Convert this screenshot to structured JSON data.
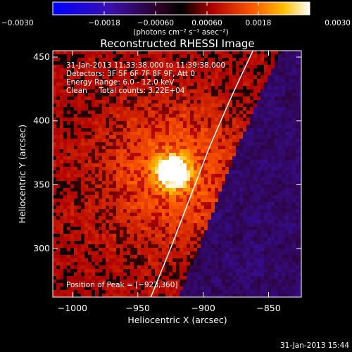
{
  "chart_data": {
    "type": "heatmap",
    "title": "Reconstructed RHESSI Image",
    "xlabel": "Heliocentric X (arcsec)",
    "ylabel": "Heliocentric Y (arcsec)",
    "xlim": [
      -1015,
      -825
    ],
    "ylim": [
      262,
      455
    ],
    "x_ticks": [
      -1000,
      -950,
      -900,
      -850
    ],
    "y_ticks": [
      300,
      350,
      400,
      450
    ],
    "x_tick_labels": [
      "−1000",
      "−950",
      "−900",
      "−850"
    ],
    "y_tick_labels": [
      "300",
      "350",
      "400",
      "450"
    ],
    "colorbar": {
      "range": [
        -0.003,
        0.003
      ],
      "ticks": [
        -0.003,
        -0.0018,
        -0.0006,
        0.0006,
        0.0018,
        0.003
      ],
      "tick_labels": [
        "−0.0030",
        "−0.0018",
        "−0.00060",
        "0.00060",
        "0.0018",
        "0.0030"
      ],
      "units": "(photons cm⁻² s⁻¹ asec⁻²)"
    },
    "annotations": {
      "time_range": "31-Jan-2013 11:33:38.000 to 11:39:38.000",
      "detectors": "Detectors: 3F 5F 6F 7F 8F 9F, Att 0",
      "energy": "Energy Range: 6.0 - 12.0 keV",
      "clean": "Clean     Total counts: 3.22E+04",
      "peak": "Position of Peak = [−923,360]"
    },
    "peak": [
      -923,
      360
    ],
    "limb_curve": [
      [
        -940,
        262
      ],
      [
        -925,
        300
      ],
      [
        -910,
        340
      ],
      [
        -895,
        380
      ],
      [
        -878,
        420
      ],
      [
        -862,
        455
      ]
    ]
  },
  "footer": {
    "timestamp": "31-Jan-2013 15:44"
  }
}
